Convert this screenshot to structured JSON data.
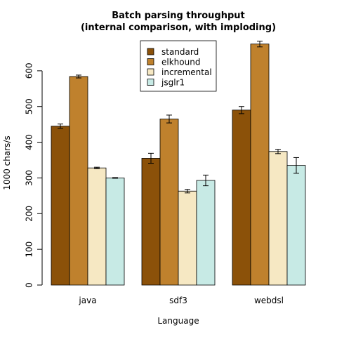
{
  "chart_data": {
    "type": "bar",
    "title_lines": [
      "Batch parsing throughput",
      "(internal comparison, with imploding)"
    ],
    "xlabel": "Language",
    "ylabel": "1000 chars/s",
    "categories": [
      "java",
      "sdf3",
      "webdsl"
    ],
    "ylim": [
      0,
      700
    ],
    "yticks": [
      0,
      100,
      200,
      300,
      400,
      500,
      600
    ],
    "legend_position": "top-center",
    "series": [
      {
        "name": "standard",
        "color": "#8b5109",
        "values": [
          445,
          355,
          490
        ],
        "errors": [
          6,
          14,
          10
        ]
      },
      {
        "name": "elkhound",
        "color": "#bf812d",
        "values": [
          584,
          465,
          675
        ],
        "errors": [
          4,
          11,
          8
        ]
      },
      {
        "name": "incremental",
        "color": "#f6e8c3",
        "values": [
          328,
          263,
          374
        ],
        "errors": [
          2,
          5,
          6
        ]
      },
      {
        "name": "jsglr1",
        "color": "#c7eae5",
        "values": [
          300,
          293,
          335
        ],
        "errors": [
          1,
          15,
          22
        ]
      }
    ]
  }
}
